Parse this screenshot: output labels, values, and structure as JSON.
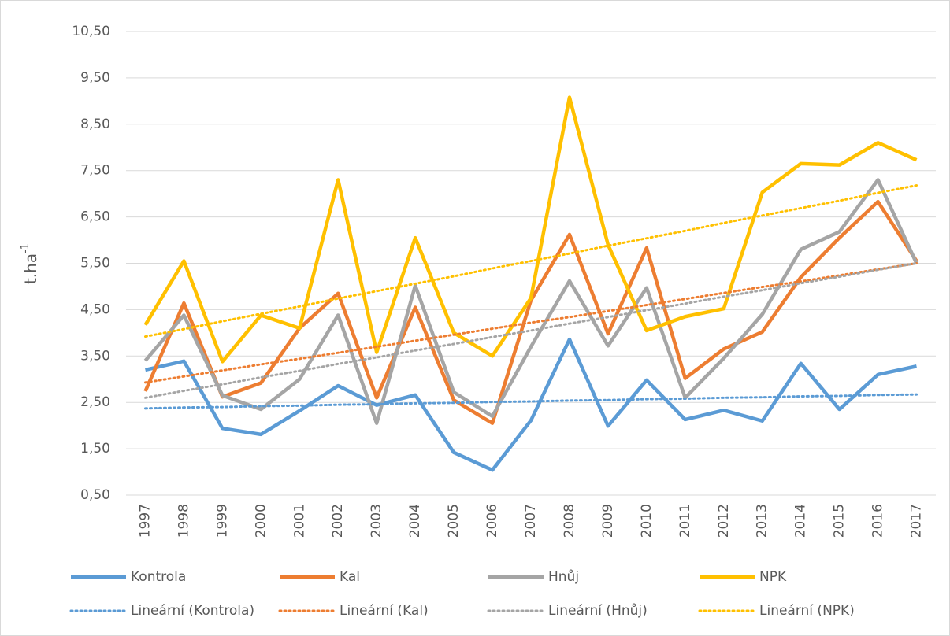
{
  "chart_data": {
    "type": "line",
    "y_label": {
      "text": "t.ha",
      "superscript": "-1"
    },
    "categories": [
      "1997",
      "1998",
      "1999",
      "2000",
      "2001",
      "2002",
      "2003",
      "2004",
      "2005",
      "2006",
      "2007",
      "2008",
      "2009",
      "2010",
      "2011",
      "2012",
      "2013",
      "2014",
      "2015",
      "2016",
      "2017"
    ],
    "ylim": [
      0.5,
      10.5
    ],
    "yticks": [
      {
        "value": 0.5,
        "label": "0,50"
      },
      {
        "value": 1.5,
        "label": "1,50"
      },
      {
        "value": 2.5,
        "label": "2,50"
      },
      {
        "value": 3.5,
        "label": "3,50"
      },
      {
        "value": 4.5,
        "label": "4,50"
      },
      {
        "value": 5.5,
        "label": "5,50"
      },
      {
        "value": 6.5,
        "label": "6,50"
      },
      {
        "value": 7.5,
        "label": "7,50"
      },
      {
        "value": 8.5,
        "label": "8,50"
      },
      {
        "value": 9.5,
        "label": "9,50"
      },
      {
        "value": 10.5,
        "label": "10,50"
      }
    ],
    "grid": true,
    "legend": "bottom",
    "series": [
      {
        "name": "Kontrola",
        "color": "#5b9bd5",
        "dotted": false,
        "values": [
          3.2,
          3.39,
          1.94,
          1.81,
          2.32,
          2.86,
          2.44,
          2.66,
          1.42,
          1.04,
          2.11,
          3.86,
          1.99,
          2.98,
          2.13,
          2.33,
          2.1,
          3.34,
          2.35,
          3.1,
          3.28
        ]
      },
      {
        "name": "Kal",
        "color": "#ed7d31",
        "dotted": false,
        "values": [
          2.74,
          4.64,
          2.62,
          2.92,
          4.1,
          4.85,
          2.6,
          4.55,
          2.55,
          2.05,
          4.7,
          6.12,
          3.98,
          5.83,
          3.02,
          3.65,
          4.02,
          5.2,
          6.05,
          6.83,
          5.55
        ]
      },
      {
        "name": "Hnůj",
        "color": "#a5a5a5",
        "dotted": false,
        "values": [
          3.4,
          4.38,
          2.65,
          2.35,
          3.0,
          4.38,
          2.05,
          5.02,
          2.72,
          2.2,
          3.7,
          5.12,
          3.72,
          4.97,
          2.6,
          3.45,
          4.4,
          5.8,
          6.18,
          7.3,
          5.5
        ]
      },
      {
        "name": "NPK",
        "color": "#ffc000",
        "dotted": false,
        "values": [
          4.17,
          5.55,
          3.38,
          4.38,
          4.1,
          7.3,
          3.58,
          6.05,
          4.0,
          3.5,
          4.75,
          9.08,
          5.9,
          4.05,
          4.35,
          4.52,
          7.03,
          7.65,
          7.62,
          8.1,
          7.73
        ]
      },
      {
        "name": "Lineární (Kontrola)",
        "color": "#5b9bd5",
        "dotted": true,
        "values": [
          2.37,
          2.39,
          2.4,
          2.42,
          2.43,
          2.45,
          2.46,
          2.48,
          2.49,
          2.51,
          2.52,
          2.54,
          2.55,
          2.57,
          2.58,
          2.6,
          2.61,
          2.63,
          2.64,
          2.66,
          2.67
        ]
      },
      {
        "name": "Lineární (Kal)",
        "color": "#ed7d31",
        "dotted": true,
        "values": [
          2.93,
          3.06,
          3.19,
          3.32,
          3.44,
          3.57,
          3.7,
          3.83,
          3.96,
          4.09,
          4.22,
          4.34,
          4.47,
          4.6,
          4.73,
          4.86,
          4.99,
          5.11,
          5.24,
          5.37,
          5.5
        ]
      },
      {
        "name": "Lineární (Hnůj)",
        "color": "#a5a5a5",
        "dotted": true,
        "values": [
          2.6,
          2.75,
          2.89,
          3.04,
          3.18,
          3.33,
          3.47,
          3.62,
          3.76,
          3.91,
          4.05,
          4.2,
          4.34,
          4.49,
          4.63,
          4.78,
          4.92,
          5.07,
          5.21,
          5.36,
          5.5
        ]
      },
      {
        "name": "Lineární (NPK)",
        "color": "#ffc000",
        "dotted": true,
        "values": [
          3.92,
          4.08,
          4.25,
          4.41,
          4.57,
          4.74,
          4.9,
          5.06,
          5.22,
          5.39,
          5.55,
          5.71,
          5.88,
          6.04,
          6.2,
          6.37,
          6.53,
          6.69,
          6.85,
          7.02,
          7.18
        ]
      }
    ]
  }
}
